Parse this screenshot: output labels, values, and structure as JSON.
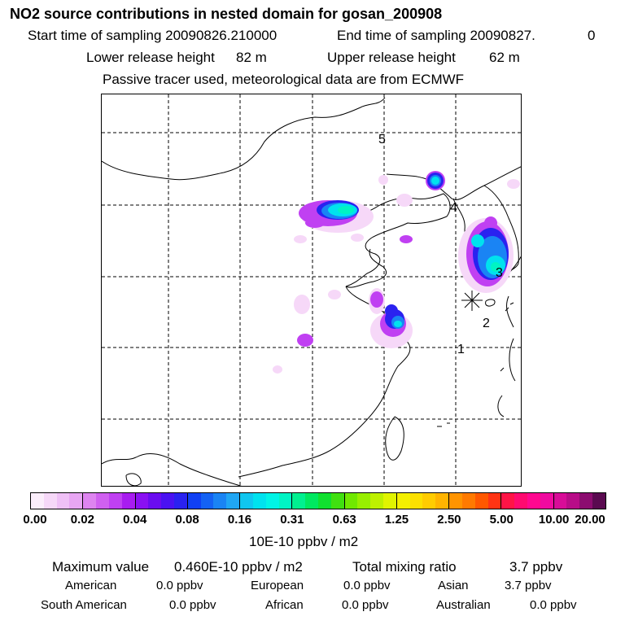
{
  "header": {
    "title": "NO2 source contributions in nested domain for gosan_200908",
    "start_label": "Start time of sampling 20090826.210000",
    "end_label": "End time of sampling 20090827.",
    "end_value": "0",
    "lower_label": "Lower release height",
    "lower_value": "82 m",
    "upper_label": "Upper release height",
    "upper_value": "62 m",
    "tracer_note": "Passive tracer used, meteorological data are from ECMWF"
  },
  "map": {
    "site_labels": [
      "1",
      "2",
      "3",
      "4",
      "5"
    ]
  },
  "colorbar": {
    "tick_labels": [
      "0.00",
      "0.02",
      "0.04",
      "0.08",
      "0.16",
      "0.31",
      "0.63",
      "1.25",
      "2.50",
      "5.00",
      "10.00",
      "20.00"
    ],
    "unit": "10E-10 ppbv / m2",
    "colors": [
      [
        "#fbeefb",
        "#f6d8f8",
        "#efc0f6",
        "#e8a6f3"
      ],
      [
        "#de84f0",
        "#d060f0",
        "#c040f2",
        "#a81cf0"
      ],
      [
        "#8a10f2",
        "#6a0cf0",
        "#4a12f2",
        "#2a22f0"
      ],
      [
        "#1040f4",
        "#1462f4",
        "#1a84f4",
        "#20a6f4"
      ],
      [
        "#10c6f0",
        "#00e2ee",
        "#00f4e6",
        "#00f4c4"
      ],
      [
        "#00f090",
        "#00e860",
        "#10e030",
        "#40e010"
      ],
      [
        "#70e800",
        "#98ee00",
        "#bef000",
        "#e0f400"
      ],
      [
        "#f4f000",
        "#fce000",
        "#ffcc00",
        "#ffb400"
      ],
      [
        "#ff9400",
        "#ff7a00",
        "#ff5800",
        "#ff3414"
      ],
      [
        "#ff1446",
        "#ff0a70",
        "#ff0890",
        "#f00aa0"
      ],
      [
        "#d80c98",
        "#b80c88",
        "#8c0c70",
        "#5a0a50"
      ]
    ]
  },
  "footer": {
    "max_label": "Maximum value",
    "max_value": "0.460E-10 ppbv / m2",
    "total_label": "Total mixing ratio",
    "total_value": "3.7 ppbv",
    "regions": [
      {
        "name": "American",
        "value": "0.0 ppbv"
      },
      {
        "name": "European",
        "value": "0.0 ppbv"
      },
      {
        "name": "Asian",
        "value": "3.7 ppbv"
      },
      {
        "name": "South American",
        "value": "0.0 ppbv"
      },
      {
        "name": "African",
        "value": "0.0 ppbv"
      },
      {
        "name": "Australian",
        "value": "0.0 ppbv"
      }
    ]
  }
}
